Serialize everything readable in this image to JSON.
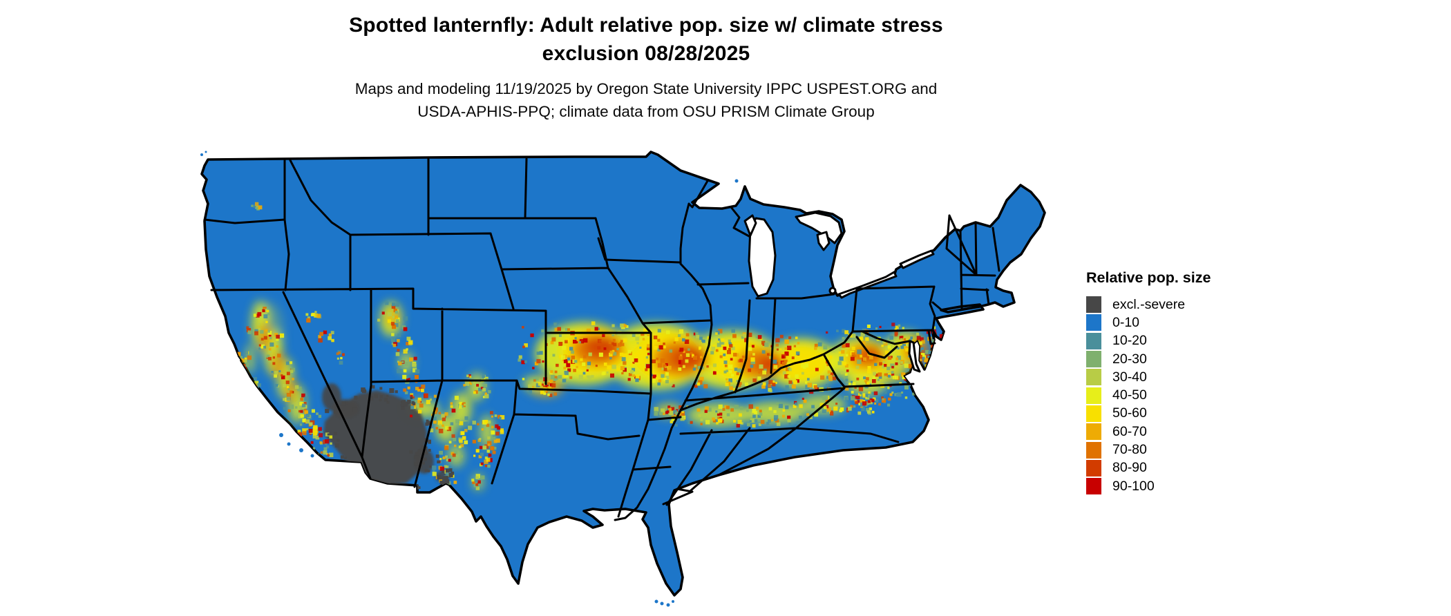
{
  "title": {
    "line1": "Spotted lanternfly: Adult relative pop. size w/ climate stress",
    "line2": "exclusion 08/28/2025"
  },
  "subtitle": {
    "line1": "Maps and modeling 11/19/2025 by Oregon State University IPPC USPEST.ORG and",
    "line2": "USDA-APHIS-PPQ; climate data from OSU PRISM Climate Group"
  },
  "legend": {
    "title": "Relative pop. size",
    "items": [
      {
        "label": "excl.-severe",
        "color": "#474747"
      },
      {
        "label": "0-10",
        "color": "#1d76c9"
      },
      {
        "label": "10-20",
        "color": "#4a8f9b"
      },
      {
        "label": "20-30",
        "color": "#7fb06e"
      },
      {
        "label": "30-40",
        "color": "#b8cc46"
      },
      {
        "label": "40-50",
        "color": "#e7ee1a"
      },
      {
        "label": "50-60",
        "color": "#f8e000"
      },
      {
        "label": "60-70",
        "color": "#eeab04"
      },
      {
        "label": "70-80",
        "color": "#e07200"
      },
      {
        "label": "80-90",
        "color": "#d23c00"
      },
      {
        "label": "90-100",
        "color": "#c80000"
      }
    ]
  },
  "map": {
    "region": "Contiguous United States with state boundaries",
    "base_category": "0-10",
    "high_band": "High relative pop. size (40-100) band across Kansas, Missouri, Illinois, Indiana, Ohio, Kentucky, West Virginia, Virginia and Maryland; secondary ridges in Tennessee/Appalachians, California Sierra and coast ranges, Utah Wasatch, Colorado/New Mexico and Arizona mountains",
    "exclusion_zone": "excl.-severe (dark gray) over Sonoran/Mojave desert of southern Arizona, southeastern California and southwestern New Mexico",
    "colors": {
      "land_base": "#1d76c9",
      "state_border": "#000000",
      "background": "#ffffff",
      "lakes": "#ffffff"
    }
  }
}
